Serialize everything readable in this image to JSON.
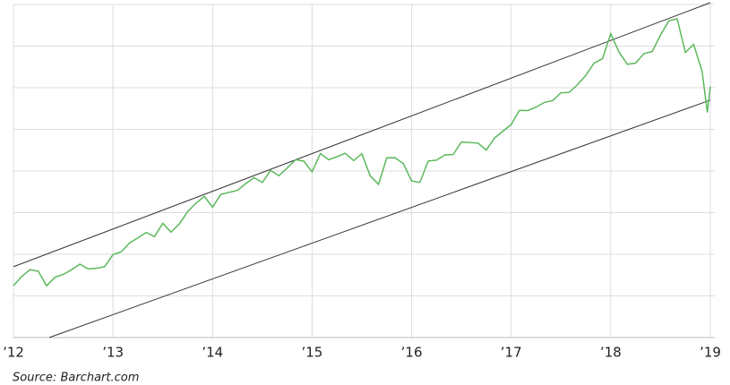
{
  "chart_data": {
    "type": "line",
    "source": "Source: Barchart.com",
    "xlim": [
      2012,
      2019
    ],
    "xticks": [
      {
        "value": 2012,
        "label": "’12"
      },
      {
        "value": 2013,
        "label": "’13"
      },
      {
        "value": 2014,
        "label": "’14"
      },
      {
        "value": 2015,
        "label": "’15"
      },
      {
        "value": 2016,
        "label": "’16"
      },
      {
        "value": 2017,
        "label": "’17"
      },
      {
        "value": 2018,
        "label": "’18"
      },
      {
        "value": 2019,
        "label": "’19"
      }
    ],
    "ylim": [
      1000,
      3000
    ],
    "yticks": [
      1000,
      1250,
      1500,
      1750,
      2000,
      2250,
      2500,
      2750,
      3000
    ],
    "grid": true,
    "x": [
      2012,
      2012.083,
      2012.167,
      2012.25,
      2012.333,
      2012.417,
      2012.5,
      2012.583,
      2012.667,
      2012.75,
      2012.833,
      2012.917,
      2013,
      2013.083,
      2013.167,
      2013.25,
      2013.333,
      2013.417,
      2013.5,
      2013.583,
      2013.667,
      2013.75,
      2013.833,
      2013.917,
      2014,
      2014.083,
      2014.167,
      2014.25,
      2014.333,
      2014.417,
      2014.5,
      2014.583,
      2014.667,
      2014.75,
      2014.833,
      2014.917,
      2015,
      2015.083,
      2015.167,
      2015.25,
      2015.333,
      2015.417,
      2015.5,
      2015.583,
      2015.667,
      2015.75,
      2015.833,
      2015.917,
      2016,
      2016.083,
      2016.167,
      2016.25,
      2016.333,
      2016.417,
      2016.5,
      2016.583,
      2016.667,
      2016.75,
      2016.833,
      2016.917,
      2017,
      2017.083,
      2017.167,
      2017.25,
      2017.333,
      2017.417,
      2017.5,
      2017.583,
      2017.667,
      2017.75,
      2017.833,
      2017.917,
      2018,
      2018.083,
      2018.167,
      2018.25,
      2018.333,
      2018.417,
      2018.5,
      2018.583,
      2018.667,
      2018.75,
      2018.833,
      2018.917,
      2018.97,
      2019
    ],
    "series": [
      {
        "color": "#5cb85c",
        "values": [
          1312,
          1366,
          1408,
          1398,
          1310,
          1362,
          1379,
          1407,
          1441,
          1412,
          1416,
          1426,
          1498,
          1515,
          1569,
          1598,
          1631,
          1606,
          1686,
          1633,
          1682,
          1757,
          1806,
          1848,
          1783,
          1859,
          1872,
          1884,
          1924,
          1960,
          1931,
          2003,
          1972,
          2018,
          2068,
          2059,
          1995,
          2105,
          2068,
          2086,
          2107,
          2063,
          2104,
          1972,
          1920,
          2079,
          2080,
          2044,
          1940,
          1932,
          2060,
          2065,
          2097,
          2099,
          2174,
          2171,
          2168,
          2126,
          2199,
          2239,
          2279,
          2364,
          2363,
          2384,
          2412,
          2423,
          2470,
          2472,
          2519,
          2575,
          2648,
          2674,
          2824,
          2714,
          2641,
          2648,
          2705,
          2718,
          2816,
          2902,
          2914,
          2712,
          2760,
          2600,
          2351,
          2507
        ]
      }
    ],
    "channels": [
      {
        "color": "#333333",
        "x": [
          2012,
          2019
        ],
        "values": [
          1425,
          3011
        ]
      },
      {
        "color": "#333333",
        "x": [
          2012.36,
          2019
        ],
        "values": [
          1000,
          2426
        ]
      }
    ]
  }
}
